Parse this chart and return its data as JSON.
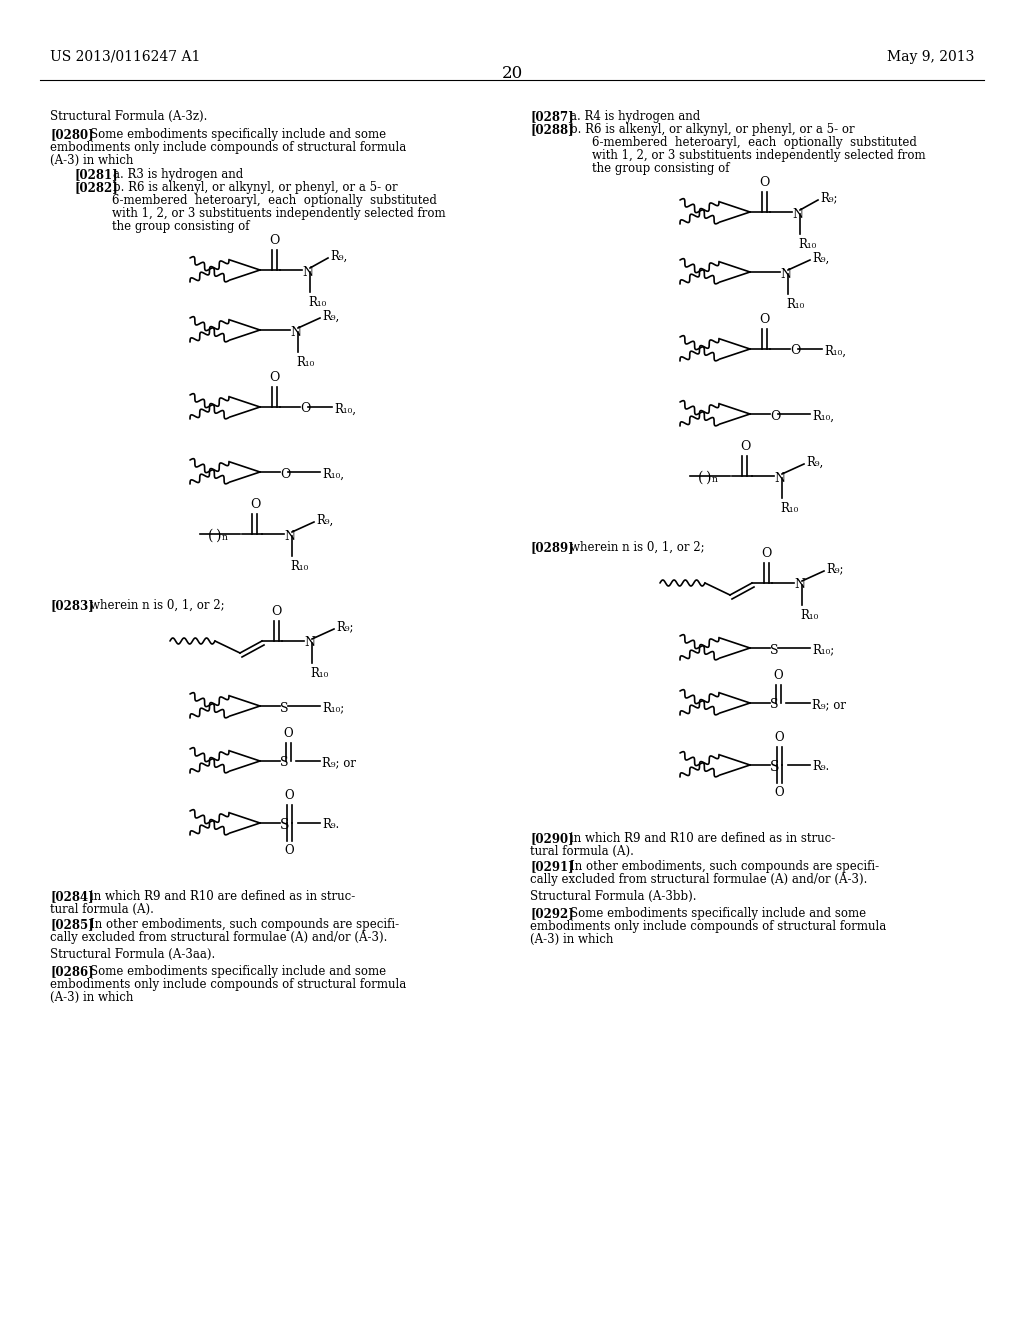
{
  "bg_color": "#ffffff",
  "header_left": "US 2013/0116247 A1",
  "header_right": "May 9, 2013",
  "page_number": "20"
}
